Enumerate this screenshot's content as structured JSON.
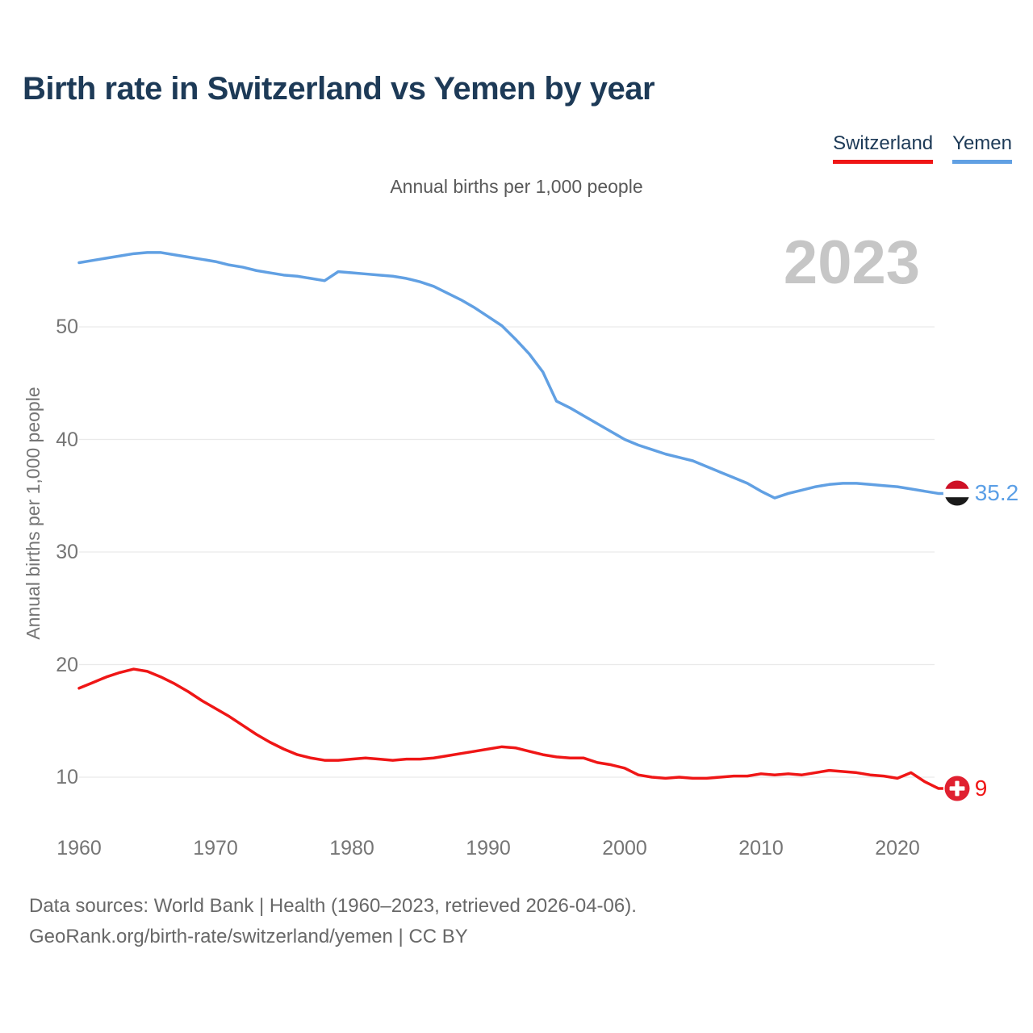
{
  "title": "Birth rate in Switzerland vs Yemen by year",
  "subtitle": "Annual births per 1,000 people",
  "watermark_year": "2023",
  "legend": [
    {
      "label": "Switzerland",
      "color": "#ef1616"
    },
    {
      "label": "Yemen",
      "color": "#61a0e3"
    }
  ],
  "end_labels": {
    "yemen": {
      "value": "35.2",
      "flag": "yemen-flag",
      "color": "#5b9fe6"
    },
    "switzerland": {
      "value": "9",
      "flag": "switzerland-flag",
      "color": "#ef1616"
    }
  },
  "footer": {
    "line1": "Data sources: World Bank | Health (1960–2023, retrieved 2026-04-06).",
    "line2": "GeoRank.org/birth-rate/switzerland/yemen | CC BY"
  },
  "colors": {
    "title_navy": "#1d3a57",
    "switzerland_red": "#ef1616",
    "yemen_blue": "#61a0e3",
    "gridline": "#eaeaea",
    "tick_gray": "#757575",
    "subtitle_gray": "#595959",
    "footer_gray": "#686868",
    "watermark_gray": "#c6c6c6",
    "yemen_flag_red": "#ce1126",
    "yemen_flag_black": "#1a1a1a",
    "swiss_flag_red": "#e02030"
  },
  "chart_data": {
    "type": "line",
    "title": "Birth rate in Switzerland vs Yemen by year",
    "subtitle": "Annual births per 1,000 people",
    "xlabel": "",
    "ylabel": "Annual births per 1,000 people",
    "xlim": [
      1960,
      2023
    ],
    "ylim": [
      6.5,
      58.5
    ],
    "grid": true,
    "legend_position": "top-right",
    "yticks": [
      10,
      20,
      30,
      40,
      50
    ],
    "xticks": [
      1960,
      1970,
      1980,
      1990,
      2000,
      2010,
      2020
    ],
    "x": [
      1960,
      1961,
      1962,
      1963,
      1964,
      1965,
      1966,
      1967,
      1968,
      1969,
      1970,
      1971,
      1972,
      1973,
      1974,
      1975,
      1976,
      1977,
      1978,
      1979,
      1980,
      1981,
      1982,
      1983,
      1984,
      1985,
      1986,
      1987,
      1988,
      1989,
      1990,
      1991,
      1992,
      1993,
      1994,
      1995,
      1996,
      1997,
      1998,
      1999,
      2000,
      2001,
      2002,
      2003,
      2004,
      2005,
      2006,
      2007,
      2008,
      2009,
      2010,
      2011,
      2012,
      2013,
      2014,
      2015,
      2016,
      2017,
      2018,
      2019,
      2020,
      2021,
      2022,
      2023
    ],
    "series": [
      {
        "name": "Switzerland",
        "color": "#ef1616",
        "end_label": "9",
        "values": [
          17.9,
          18.4,
          18.9,
          19.3,
          19.6,
          19.4,
          18.9,
          18.3,
          17.6,
          16.8,
          16.1,
          15.4,
          14.6,
          13.8,
          13.1,
          12.5,
          12.0,
          11.7,
          11.5,
          11.5,
          11.6,
          11.7,
          11.6,
          11.5,
          11.6,
          11.6,
          11.7,
          11.9,
          12.1,
          12.3,
          12.5,
          12.7,
          12.6,
          12.3,
          12.0,
          11.8,
          11.7,
          11.7,
          11.3,
          11.1,
          10.8,
          10.2,
          10.0,
          9.9,
          10.0,
          9.9,
          9.9,
          10.0,
          10.1,
          10.1,
          10.3,
          10.2,
          10.3,
          10.2,
          10.4,
          10.6,
          10.5,
          10.4,
          10.2,
          10.1,
          9.9,
          10.4,
          9.6,
          9.0
        ]
      },
      {
        "name": "Yemen",
        "color": "#61a0e3",
        "end_label": "35.2",
        "values": [
          55.7,
          55.9,
          56.1,
          56.3,
          56.5,
          56.6,
          56.6,
          56.4,
          56.2,
          56.0,
          55.8,
          55.5,
          55.3,
          55.0,
          54.8,
          54.6,
          54.5,
          54.3,
          54.1,
          54.9,
          54.8,
          54.7,
          54.6,
          54.5,
          54.3,
          54.0,
          53.6,
          53.0,
          52.4,
          51.7,
          50.9,
          50.1,
          48.9,
          47.6,
          46.0,
          43.4,
          42.8,
          42.1,
          41.4,
          40.7,
          40.0,
          39.5,
          39.1,
          38.7,
          38.4,
          38.1,
          37.6,
          37.1,
          36.6,
          36.1,
          35.4,
          34.8,
          35.2,
          35.5,
          35.8,
          36.0,
          36.1,
          36.1,
          36.0,
          35.9,
          35.8,
          35.6,
          35.4,
          35.2
        ]
      }
    ]
  }
}
